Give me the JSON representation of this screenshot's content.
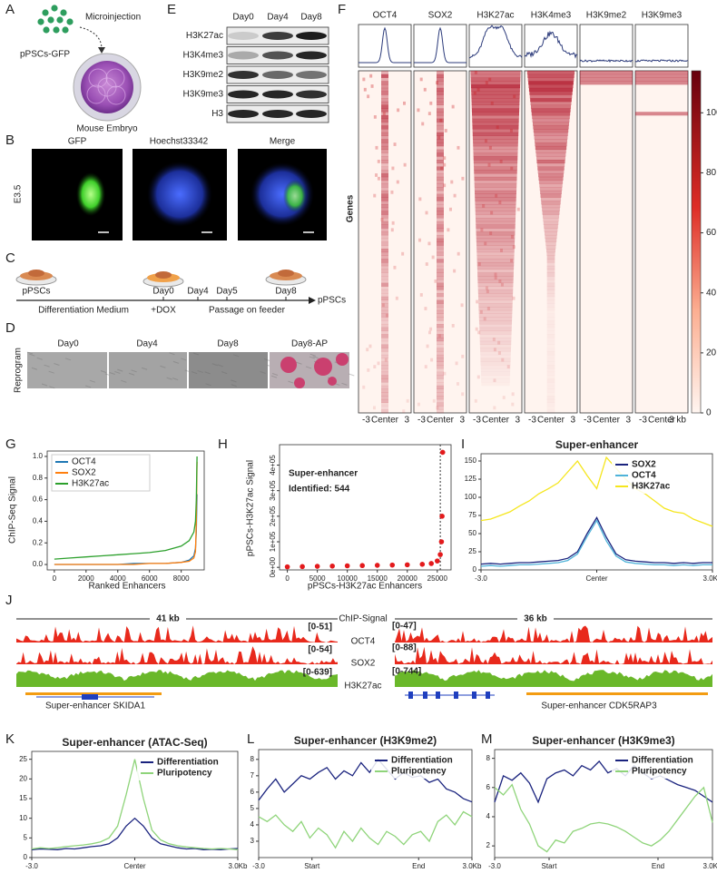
{
  "panel_labels": [
    "A",
    "E",
    "F",
    "B",
    "C",
    "D",
    "G",
    "H",
    "I",
    "J",
    "K",
    "L",
    "M"
  ],
  "panel_a": {
    "microinjection": "Microinjection",
    "cells": "pPSCs-GFP",
    "embryo": "Mouse Embryo"
  },
  "panel_e": {
    "days": [
      "Day0",
      "Day4",
      "Day8"
    ],
    "marks": [
      "H3K27ac",
      "H3K4me3",
      "H3K9me2",
      "H3K9me3",
      "H3"
    ]
  },
  "panel_b": {
    "stage": "E3.5",
    "channels": [
      "GFP",
      "Hoechst33342",
      "Merge"
    ]
  },
  "panel_c": {
    "timepoints": [
      "pPSCs",
      "Day0",
      "Day4",
      "Day5",
      "Day8",
      "pPSCs"
    ],
    "phases": [
      "Differentiation Medium",
      "+DOX",
      "Passage on feeder"
    ]
  },
  "panel_d": {
    "row": "Reprogram",
    "days": [
      "Day0",
      "Day4",
      "Day8",
      "Day8-AP"
    ]
  },
  "panel_j": {
    "spans": [
      "41 kb",
      "36 kb"
    ],
    "track_title": "ChIP-Signal",
    "tracks": [
      "OCT4",
      "SOX2",
      "H3K27ac"
    ],
    "ranges_left": [
      "[0-51]",
      "[0-54]",
      "[0-639]"
    ],
    "ranges_right": [
      "[0-47]",
      "[0-88]",
      "[0-744]"
    ],
    "regions": [
      "Super-enhancer SKIDA1",
      "Super-enhancer CDK5RAP3"
    ]
  },
  "chart_data": [
    {
      "type": "heatmap",
      "columns": [
        "OCT4",
        "SOX2",
        "H3K27ac",
        "H3K4me3",
        "H3K9me2",
        "H3K9me3"
      ],
      "row_label": "Genes",
      "x_labels": [
        "-3",
        "Center",
        "3"
      ],
      "end_label": "3 kb",
      "clim": [
        0,
        114
      ],
      "colorbar_ticks": [
        0,
        20,
        40,
        60,
        80,
        100
      ]
    },
    {
      "type": "line",
      "x_label": "Ranked Enhancers",
      "y_label": "ChIP-Seq Signal",
      "legend": "upper left",
      "x": [
        0,
        1000,
        2000,
        3000,
        4000,
        5000,
        6000,
        7000,
        8000,
        8500,
        8800,
        8900,
        8950,
        9000
      ],
      "series": [
        {
          "name": "OCT4",
          "color": "#1f77b4",
          "values": [
            0,
            0,
            0,
            0,
            0,
            0.01,
            0.01,
            0.01,
            0.02,
            0.04,
            0.08,
            0.15,
            0.3,
            0.65
          ]
        },
        {
          "name": "SOX2",
          "color": "#ff7f0e",
          "values": [
            0,
            0,
            0,
            0,
            0,
            0,
            0.01,
            0.01,
            0.02,
            0.03,
            0.06,
            0.12,
            0.4,
            0.95
          ]
        },
        {
          "name": "H3K27ac",
          "color": "#2ca02c",
          "values": [
            0.05,
            0.06,
            0.07,
            0.08,
            0.09,
            0.1,
            0.11,
            0.13,
            0.17,
            0.22,
            0.3,
            0.4,
            0.6,
            1.0
          ]
        }
      ],
      "xlim": [
        -450,
        9450
      ],
      "ylim": [
        -0.05,
        1.05
      ],
      "xticks": [
        0,
        2000,
        4000,
        6000,
        8000
      ],
      "yticks": [
        {
          "value": 0,
          "label": "0.0"
        },
        {
          "value": 0.2,
          "label": "0.2"
        },
        {
          "value": 0.4,
          "label": "0.4"
        },
        {
          "value": 0.6,
          "label": "0.6"
        },
        {
          "value": 0.8,
          "label": "0.8"
        },
        {
          "value": 1,
          "label": "1.0"
        }
      ]
    },
    {
      "type": "scatter",
      "x_label": "pPSCs-H3K27ac Enhancers",
      "y_label": "pPSCs-H3K27ac Signal",
      "annotation": [
        "Super-enhancer",
        "Identified: 544"
      ],
      "color": "#e31a1c",
      "threshold": 25500,
      "x": [
        0,
        2500,
        5000,
        7500,
        10000,
        12500,
        15000,
        17500,
        20000,
        22500,
        24000,
        25000,
        25500,
        25700,
        25800,
        25900
      ],
      "values": [
        2000,
        3000,
        4000,
        5000,
        6000,
        7000,
        8000,
        9000,
        10000,
        12000,
        15000,
        25000,
        50000,
        100000,
        200000,
        450000
      ],
      "xlim": [
        -1300,
        27300
      ],
      "ylim": [
        -10000,
        480000
      ],
      "xticks": [
        0,
        5000,
        10000,
        15000,
        20000,
        25000
      ],
      "yticks": [
        {
          "value": 0,
          "label": "0e+00"
        },
        {
          "value": 100000,
          "label": "1e+05"
        },
        {
          "value": 200000,
          "label": "2e+05"
        },
        {
          "value": 300000,
          "label": "3e+05"
        },
        {
          "value": 400000,
          "label": "4e+05"
        }
      ]
    },
    {
      "type": "line",
      "title": "Super-enhancer",
      "legend": "upper right",
      "x": [
        -3,
        -2.75,
        -2.5,
        -2.25,
        -2,
        -1.75,
        -1.5,
        -1.25,
        -1,
        -0.75,
        -0.5,
        -0.25,
        0,
        0.25,
        0.5,
        0.75,
        1,
        1.25,
        1.5,
        1.75,
        2,
        2.25,
        2.5,
        2.75,
        3
      ],
      "series": [
        {
          "name": "SOX2",
          "color": "#1a237e",
          "values": [
            8,
            9,
            8,
            9,
            10,
            10,
            11,
            12,
            13,
            16,
            25,
            50,
            72,
            45,
            22,
            14,
            12,
            11,
            10,
            10,
            9,
            10,
            9,
            10,
            10
          ]
        },
        {
          "name": "OCT4",
          "color": "#4fb3d9",
          "values": [
            5,
            6,
            5,
            6,
            7,
            7,
            8,
            9,
            10,
            13,
            22,
            46,
            68,
            40,
            19,
            11,
            9,
            8,
            7,
            7,
            6,
            7,
            6,
            7,
            7
          ]
        },
        {
          "name": "H3K27ac",
          "color": "#f5e61e",
          "values": [
            68,
            70,
            75,
            80,
            88,
            95,
            105,
            112,
            120,
            135,
            150,
            130,
            112,
            155,
            140,
            125,
            112,
            105,
            95,
            85,
            80,
            78,
            70,
            65,
            60
          ]
        }
      ],
      "xlim": [
        -3,
        3
      ],
      "ylim": [
        0,
        160
      ],
      "xticks": [
        {
          "value": -3,
          "label": "-3.0"
        },
        {
          "value": 0,
          "label": "Center"
        },
        {
          "value": 3,
          "label": "3.0Kb"
        }
      ],
      "yticks": [
        0,
        25,
        50,
        75,
        100,
        125,
        150
      ]
    },
    {
      "type": "line",
      "title": "Super-enhancer (ATAC-Seq)",
      "legend": "upper right",
      "x": [
        -3,
        -2.75,
        -2.5,
        -2.25,
        -2,
        -1.75,
        -1.5,
        -1.25,
        -1,
        -0.75,
        -0.5,
        -0.25,
        0,
        0.25,
        0.5,
        0.75,
        1,
        1.25,
        1.5,
        1.75,
        2,
        2.25,
        2.5,
        2.75,
        3
      ],
      "series": [
        {
          "name": "Differentiation",
          "color": "#1a237e",
          "values": [
            2,
            2.2,
            2.1,
            2,
            2.3,
            2.2,
            2.5,
            2.8,
            3,
            3.5,
            5,
            8,
            10,
            8,
            5,
            3.5,
            3,
            2.5,
            2.2,
            2.3,
            2,
            2.1,
            2,
            2.2,
            2.3
          ]
        },
        {
          "name": "Pluripotency",
          "color": "#8fd47a",
          "values": [
            2.2,
            2.5,
            2.3,
            2.5,
            2.8,
            3,
            3.2,
            3.5,
            4,
            5,
            8,
            16,
            25,
            15,
            7,
            4.5,
            3.5,
            3,
            2.7,
            2.5,
            2.3,
            2.2,
            2.3,
            2.2,
            2
          ]
        }
      ],
      "xlim": [
        -3,
        3
      ],
      "ylim": [
        0,
        27
      ],
      "xticks": [
        {
          "value": -3,
          "label": "-3.0"
        },
        {
          "value": 0,
          "label": "Center"
        },
        {
          "value": 3,
          "label": "3.0Kb"
        }
      ],
      "yticks": [
        0,
        5,
        10,
        15,
        20,
        25
      ]
    },
    {
      "type": "line",
      "title": "Super-enhancer (H3K9me2)",
      "legend": "upper right",
      "x": [
        0,
        4,
        8,
        12,
        16,
        20,
        24,
        28,
        32,
        36,
        40,
        44,
        48,
        52,
        56,
        60,
        64,
        68,
        72,
        76,
        80,
        84,
        88,
        92,
        96,
        100
      ],
      "series": [
        {
          "name": "Differentiation",
          "color": "#1a237e",
          "values": [
            5.5,
            6.2,
            6.8,
            6,
            6.5,
            7,
            6.8,
            7.2,
            7.5,
            6.8,
            7.3,
            7,
            7.8,
            7.2,
            8,
            7.4,
            6.8,
            7.2,
            6.9,
            7,
            6.6,
            6.8,
            6.2,
            6,
            5.6,
            5.4
          ]
        },
        {
          "name": "Pluripotency",
          "color": "#8fd47a",
          "values": [
            4.5,
            4.2,
            4.6,
            4,
            3.6,
            4.2,
            3.2,
            3.8,
            3.4,
            2.6,
            3.6,
            3,
            3.8,
            3.2,
            2.8,
            3.6,
            3.3,
            2.8,
            3.4,
            3.6,
            3,
            4.2,
            4.6,
            4,
            4.8,
            4.5
          ]
        }
      ],
      "xlim": [
        0,
        100
      ],
      "ylim": [
        2,
        8.6
      ],
      "xticks": [
        {
          "value": 0,
          "label": "-3.0"
        },
        {
          "value": 25,
          "label": "Start"
        },
        {
          "value": 75,
          "label": "End"
        },
        {
          "value": 100,
          "label": "3.0Kb"
        }
      ],
      "yticks": [
        3,
        4,
        5,
        6,
        7,
        8
      ]
    },
    {
      "type": "line",
      "title": "Super-enhancer (H3K9me3)",
      "legend": "upper right",
      "x": [
        0,
        4,
        8,
        12,
        16,
        20,
        24,
        28,
        32,
        36,
        40,
        44,
        48,
        52,
        56,
        60,
        64,
        68,
        72,
        76,
        80,
        84,
        88,
        92,
        96,
        100
      ],
      "series": [
        {
          "name": "Differentiation",
          "color": "#1a237e",
          "values": [
            5,
            6.8,
            6.5,
            7,
            6.3,
            5,
            6.6,
            7,
            7.2,
            6.8,
            7.5,
            7.2,
            7.8,
            7,
            7.3,
            6.8,
            7.5,
            7,
            6.6,
            6.8,
            6.5,
            6.2,
            6,
            5.8,
            5.4,
            5
          ]
        },
        {
          "name": "Pluripotency",
          "color": "#8fd47a",
          "values": [
            6,
            5.5,
            6.2,
            4.5,
            3.5,
            2,
            1.6,
            2.4,
            2.2,
            3,
            3.2,
            3.5,
            3.6,
            3.5,
            3.3,
            3,
            2.6,
            2.2,
            2,
            2.4,
            3,
            3.8,
            4.6,
            5.4,
            6,
            3.6
          ]
        }
      ],
      "xlim": [
        0,
        100
      ],
      "ylim": [
        1.2,
        8.6
      ],
      "xticks": [
        {
          "value": 0,
          "label": "-3.0"
        },
        {
          "value": 25,
          "label": "Start"
        },
        {
          "value": 75,
          "label": "End"
        },
        {
          "value": 100,
          "label": "3.0Kb"
        }
      ],
      "yticks": [
        2,
        4,
        6,
        8
      ]
    }
  ]
}
